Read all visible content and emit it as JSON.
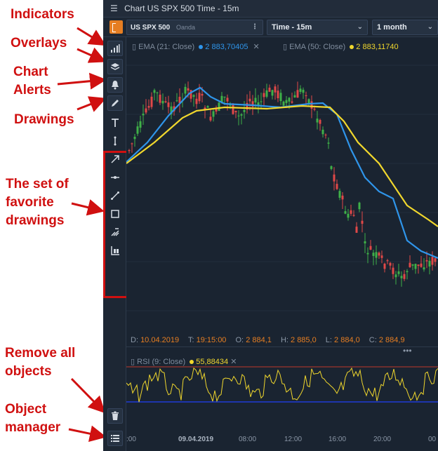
{
  "annotations": {
    "indicators": "Indicators",
    "overlays": "Overlays",
    "chart_alerts_1": "Chart",
    "chart_alerts_2": "Alerts",
    "drawings": "Drawings",
    "fav_1": "The set of",
    "fav_2": "favorite",
    "fav_3": "drawings",
    "remove_1": "Remove all",
    "remove_2": "objects",
    "objmgr_1": "Object",
    "objmgr_2": "manager"
  },
  "window": {
    "menu_icon": "hamburger-icon",
    "title": "Chart US SPX 500 Time - 15m"
  },
  "toolbar": {
    "symbol": "US SPX 500",
    "source": "Oanda",
    "timeframe": "Time - 15m",
    "range": "1 month"
  },
  "sidebar": {
    "tools": [
      "indicators-icon",
      "overlays-icon",
      "bell-icon",
      "pencil-icon",
      "text-tool-icon",
      "vertical-line-icon",
      "arrow-icon",
      "horizontal-ray-icon",
      "trend-line-icon",
      "rectangle-icon",
      "fibonacci-icon",
      "fan-icon",
      "trash-icon",
      "list-icon"
    ]
  },
  "legend": {
    "ema21": {
      "label": "EMA (21: Close)",
      "value": "2 883,70405"
    },
    "ema50": {
      "label": "EMA (50: Close)",
      "value": "2 883,11740"
    }
  },
  "ohlc": {
    "d_label": "D:",
    "d_value": "10.04.2019",
    "t_label": "T:",
    "t_value": "19:15:00",
    "o_label": "O:",
    "o_value": "2 884,1",
    "h_label": "H:",
    "h_value": "2 885,0",
    "l_label": "L:",
    "l_value": "2 884,0",
    "c_label": "C:",
    "c_value": "2 884,9"
  },
  "rsi": {
    "label": "RSI (9: Close)",
    "value": "55,88434"
  },
  "time_axis": {
    "ticks": [
      ":00",
      "09.04.2019",
      "08:00",
      "12:00",
      "16:00",
      "20:00",
      "00"
    ]
  },
  "colors": {
    "ema21": "#2f95ea",
    "ema50": "#f0d72d",
    "up": "#3fb048",
    "down": "#e04848",
    "accent": "#e67e22",
    "annotation": "#d01010"
  }
}
